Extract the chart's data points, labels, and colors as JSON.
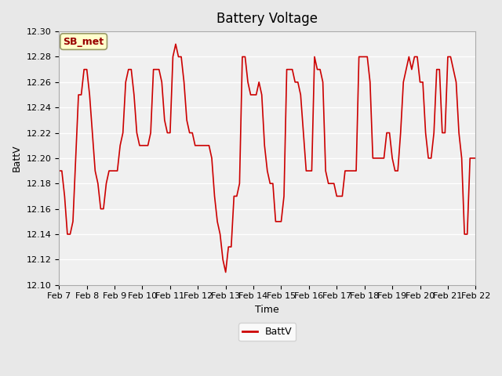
{
  "title": "Battery Voltage",
  "xlabel": "Time",
  "ylabel": "BattV",
  "ylim": [
    12.1,
    12.3
  ],
  "yticks": [
    12.1,
    12.12,
    12.14,
    12.16,
    12.18,
    12.2,
    12.22,
    12.24,
    12.26,
    12.28,
    12.3
  ],
  "xtick_labels": [
    "Feb 7",
    "Feb 8",
    "Feb 9",
    "Feb 10",
    "Feb 11",
    "Feb 12",
    "Feb 13",
    "Feb 14",
    "Feb 15",
    "Feb 16",
    "Feb 17",
    "Feb 18",
    "Feb 19",
    "Feb 20",
    "Feb 21",
    "Feb 22"
  ],
  "line_color": "#cc0000",
  "line_width": 1.2,
  "bg_color": "#e8e8e8",
  "plot_bg_color": "#f0f0f0",
  "grid_color": "#ffffff",
  "legend_label": "BattV",
  "watermark_text": "SB_met",
  "watermark_bg": "#ffffcc",
  "watermark_border": "#999966",
  "watermark_text_color": "#990000",
  "x_values": [
    7,
    7.1,
    7.2,
    7.3,
    7.4,
    7.5,
    7.6,
    7.7,
    7.8,
    7.9,
    8.0,
    8.1,
    8.2,
    8.3,
    8.4,
    8.5,
    8.6,
    8.7,
    8.8,
    8.9,
    9.0,
    9.1,
    9.2,
    9.3,
    9.4,
    9.5,
    9.6,
    9.7,
    9.8,
    9.9,
    10.0,
    10.1,
    10.2,
    10.3,
    10.4,
    10.5,
    10.6,
    10.7,
    10.8,
    10.9,
    11.0,
    11.1,
    11.2,
    11.3,
    11.4,
    11.5,
    11.6,
    11.7,
    11.8,
    11.9,
    12.0,
    12.1,
    12.2,
    12.3,
    12.4,
    12.5,
    12.6,
    12.7,
    12.8,
    12.9,
    13.0,
    13.1,
    13.2,
    13.3,
    13.4,
    13.5,
    13.6,
    13.7,
    13.8,
    13.9,
    14.0,
    14.1,
    14.2,
    14.3,
    14.4,
    14.5,
    14.6,
    14.7,
    14.8,
    14.9,
    15.0,
    15.1,
    15.2,
    15.3,
    15.4,
    15.5,
    15.6,
    15.7,
    15.8,
    15.9,
    16.0,
    16.1,
    16.2,
    16.3,
    16.4,
    16.5,
    16.6,
    16.7,
    16.8,
    16.9,
    17.0,
    17.1,
    17.2,
    17.3,
    17.4,
    17.5,
    17.6,
    17.7,
    17.8,
    17.9,
    18.0,
    18.1,
    18.2,
    18.3,
    18.4,
    18.5,
    18.6,
    18.7,
    18.8,
    18.9,
    19.0,
    19.1,
    19.2,
    19.3,
    19.4,
    19.5,
    19.6,
    19.7,
    19.8,
    19.9,
    20.0,
    20.1,
    20.2,
    20.3,
    20.4,
    20.5,
    20.6,
    20.7,
    20.8,
    20.9,
    21.0,
    21.1,
    21.2,
    21.3,
    21.4,
    21.5,
    21.6,
    21.7,
    21.8,
    21.9,
    22.0
  ],
  "y_values": [
    12.19,
    12.19,
    12.17,
    12.14,
    12.14,
    12.15,
    12.2,
    12.25,
    12.25,
    12.27,
    12.27,
    12.25,
    12.22,
    12.19,
    12.18,
    12.16,
    12.16,
    12.18,
    12.19,
    12.19,
    12.19,
    12.19,
    12.21,
    12.22,
    12.26,
    12.27,
    12.27,
    12.25,
    12.22,
    12.21,
    12.21,
    12.21,
    12.21,
    12.22,
    12.27,
    12.27,
    12.27,
    12.26,
    12.23,
    12.22,
    12.22,
    12.28,
    12.29,
    12.28,
    12.28,
    12.26,
    12.23,
    12.22,
    12.22,
    12.21,
    12.21,
    12.21,
    12.21,
    12.21,
    12.21,
    12.2,
    12.17,
    12.15,
    12.14,
    12.12,
    12.11,
    12.13,
    12.13,
    12.17,
    12.17,
    12.18,
    12.28,
    12.28,
    12.26,
    12.25,
    12.25,
    12.25,
    12.26,
    12.25,
    12.21,
    12.19,
    12.18,
    12.18,
    12.15,
    12.15,
    12.15,
    12.17,
    12.27,
    12.27,
    12.27,
    12.26,
    12.26,
    12.25,
    12.22,
    12.19,
    12.19,
    12.19,
    12.28,
    12.27,
    12.27,
    12.26,
    12.19,
    12.18,
    12.18,
    12.18,
    12.17,
    12.17,
    12.17,
    12.19,
    12.19,
    12.19,
    12.19,
    12.19,
    12.28,
    12.28,
    12.28,
    12.28,
    12.26,
    12.2,
    12.2,
    12.2,
    12.2,
    12.2,
    12.22,
    12.22,
    12.2,
    12.19,
    12.19,
    12.22,
    12.26,
    12.27,
    12.28,
    12.27,
    12.28,
    12.28,
    12.26,
    12.26,
    12.22,
    12.2,
    12.2,
    12.22,
    12.27,
    12.27,
    12.22,
    12.22,
    12.28,
    12.28,
    12.27,
    12.26,
    12.22,
    12.2,
    12.14,
    12.14,
    12.2,
    12.2,
    12.2
  ]
}
